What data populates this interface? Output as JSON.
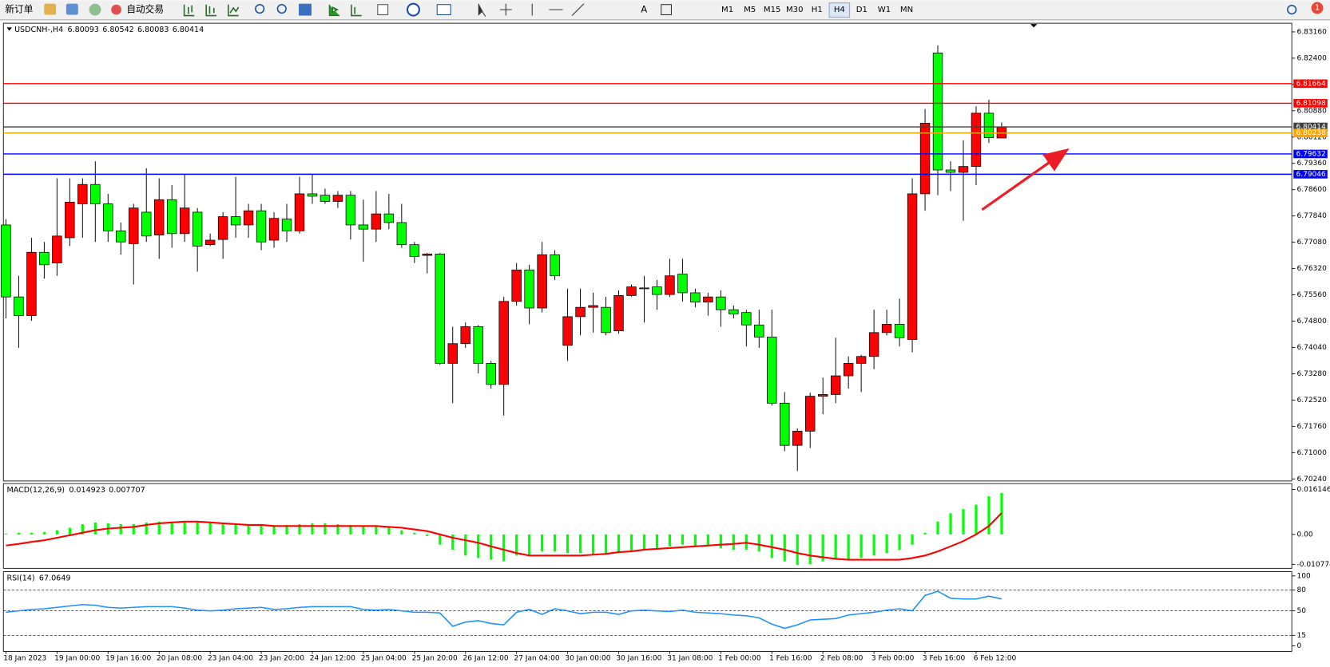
{
  "toolbar": {
    "new_order": "新订单",
    "auto_trading": "自动交易",
    "timeframes": [
      "M1",
      "M5",
      "M15",
      "M30",
      "H1",
      "H4",
      "D1",
      "W1",
      "MN"
    ],
    "active_timeframe": "H4",
    "notifications": 1
  },
  "chart_data": [
    {
      "type": "candlestick",
      "title": "USDCNH-,H4",
      "up_color": "#ff0000",
      "down_color": "#00ff00",
      "categories": [
        "18 Jan 2023",
        null,
        null,
        null,
        "19 Jan 00:00",
        null,
        null,
        null,
        "19 Jan 16:00",
        null,
        null,
        null,
        "20 Jan 08:00",
        null,
        null,
        null,
        "23 Jan 04:00",
        null,
        null,
        null,
        "23 Jan 20:00",
        null,
        null,
        null,
        "24 Jan 12:00",
        null,
        null,
        null,
        "25 Jan 04:00",
        null,
        null,
        null,
        "25 Jan 20:00",
        null,
        null,
        null,
        "26 Jan 12:00",
        null,
        null,
        null,
        "27 Jan 04:00",
        null,
        null,
        null,
        "30 Jan 00:00",
        null,
        null,
        null,
        "30 Jan 16:00",
        null,
        null,
        null,
        "31 Jan 08:00",
        null,
        null,
        null,
        "1 Feb 00:00",
        null,
        null,
        null,
        "1 Feb 16:00",
        null,
        null,
        null,
        "2 Feb 08:00",
        null,
        null,
        null,
        "3 Feb 00:00",
        null,
        null,
        null,
        "3 Feb 16:00",
        null,
        null,
        null,
        "6 Feb 12:00",
        null,
        null
      ],
      "open": [
        6.7758,
        6.755,
        6.7496,
        6.7679,
        6.7648,
        6.7721,
        6.7819,
        6.7875,
        6.7819,
        6.7741,
        6.7704,
        6.7795,
        6.7729,
        6.7831,
        6.7733,
        6.7795,
        6.7701,
        6.7716,
        6.7782,
        6.7758,
        6.7799,
        6.7714,
        6.7775,
        6.7741,
        6.7848,
        6.7844,
        6.7826,
        6.7844,
        6.7758,
        6.7746,
        6.779,
        6.7765,
        6.7701,
        6.767,
        6.7674,
        6.7358,
        6.7415,
        6.7464,
        6.7358,
        6.7297,
        6.7537,
        6.7628,
        6.7518,
        6.7672,
        6.741,
        6.7493,
        6.752,
        6.752,
        6.7452,
        6.7554,
        6.7574,
        6.7579,
        6.7557,
        6.7616,
        6.7562,
        6.7535,
        6.755,
        6.7513,
        6.7505,
        6.7469,
        6.7434,
        6.7243,
        6.7121,
        6.7162,
        6.7263,
        6.7268,
        6.7322,
        6.7358,
        6.7378,
        6.7447,
        6.7471,
        6.7427,
        6.7848,
        6.8255,
        6.7917,
        6.791,
        6.7927,
        6.8081,
        6.80093
      ],
      "high": [
        6.7775,
        6.7611,
        6.7721,
        6.7709,
        6.7893,
        6.7893,
        6.7893,
        6.7942,
        6.7848,
        6.7765,
        6.7819,
        6.7922,
        6.7893,
        6.7873,
        6.7905,
        6.7807,
        6.7733,
        6.7795,
        6.7897,
        6.7819,
        6.7819,
        6.7795,
        6.7819,
        6.7897,
        6.7905,
        6.7863,
        6.7856,
        6.7856,
        6.7831,
        6.7856,
        6.7848,
        6.7819,
        6.7709,
        6.7677,
        6.7677,
        6.7464,
        6.7476,
        6.7469,
        6.7365,
        6.755,
        6.7648,
        6.7643,
        6.7709,
        6.7685,
        6.7574,
        6.7574,
        6.7562,
        6.755,
        6.7569,
        6.7586,
        6.7611,
        6.7599,
        6.766,
        6.766,
        6.7574,
        6.7562,
        6.7569,
        6.7525,
        6.7513,
        6.7513,
        6.7513,
        6.7275,
        6.717,
        6.7273,
        6.7317,
        6.7432,
        6.7378,
        6.7383,
        6.7513,
        6.7513,
        6.7545,
        6.7893,
        6.8093,
        6.8277,
        6.7942,
        6.8003,
        6.8101,
        6.812,
        6.80542
      ],
      "low": [
        6.7488,
        6.7403,
        6.7481,
        6.7603,
        6.7611,
        6.7697,
        6.7721,
        6.7709,
        6.7709,
        6.7672,
        6.7586,
        6.7709,
        6.766,
        6.7692,
        6.7709,
        6.7623,
        6.7697,
        6.766,
        6.7721,
        6.7721,
        6.7685,
        6.7692,
        6.7709,
        6.7733,
        6.7819,
        6.7819,
        6.7807,
        6.7716,
        6.7652,
        6.7709,
        6.7746,
        6.7692,
        6.7648,
        6.7618,
        6.7354,
        6.7243,
        6.7403,
        6.7329,
        6.7285,
        6.7207,
        6.7525,
        6.7471,
        6.7505,
        6.7599,
        6.7365,
        6.7439,
        6.7447,
        6.7439,
        6.7444,
        6.755,
        6.7476,
        6.7513,
        6.755,
        6.7537,
        6.752,
        6.7496,
        6.7464,
        6.7488,
        6.7407,
        6.7403,
        6.7236,
        6.7104,
        6.7047,
        6.7113,
        6.7211,
        6.7243,
        6.7285,
        6.7275,
        6.7341,
        6.7439,
        6.7407,
        6.739,
        6.7799,
        6.7844,
        6.7856,
        6.777,
        6.7873,
        6.7995,
        6.80083
      ],
      "close": [
        6.755,
        6.7496,
        6.7679,
        6.7643,
        6.7726,
        6.7824,
        6.7875,
        6.7819,
        6.7741,
        6.7709,
        6.7807,
        6.7726,
        6.7831,
        6.7733,
        6.7807,
        6.7697,
        6.7714,
        6.7782,
        6.7758,
        6.7799,
        6.7709,
        6.7777,
        6.7741,
        6.7848,
        6.7841,
        6.7826,
        6.7844,
        6.7758,
        6.7746,
        6.779,
        6.7765,
        6.7701,
        6.7667,
        6.7674,
        6.7358,
        6.7415,
        6.7464,
        6.7358,
        6.7297,
        6.7537,
        6.7628,
        6.7518,
        6.7672,
        6.7611,
        6.7493,
        6.752,
        6.7525,
        6.7447,
        6.7554,
        6.7579,
        6.7576,
        6.7557,
        6.7611,
        6.7562,
        6.7535,
        6.755,
        6.7513,
        6.7501,
        6.7469,
        6.7434,
        6.7243,
        6.7121,
        6.7162,
        6.7263,
        6.7268,
        6.7322,
        6.7358,
        6.7378,
        6.7447,
        6.7471,
        6.7432,
        6.7848,
        6.8052,
        6.7917,
        6.791,
        6.7927,
        6.8081,
        6.801,
        6.80414
      ],
      "ylim": [
        6.7018,
        6.8341
      ],
      "yticks": [
        {
          "value": 6.8316,
          "label": "6.83160"
        },
        {
          "value": 6.824,
          "label": "6.82400"
        },
        {
          "value": 6.8164,
          "label": "6.81640"
        },
        {
          "value": 6.8088,
          "label": "6.80880"
        },
        {
          "value": 6.8012,
          "label": "6.80120"
        },
        {
          "value": 6.7936,
          "label": "6.79360"
        },
        {
          "value": 6.786,
          "label": "6.78600"
        },
        {
          "value": 6.7784,
          "label": "6.77840"
        },
        {
          "value": 6.7708,
          "label": "6.77080"
        },
        {
          "value": 6.7632,
          "label": "6.76320"
        },
        {
          "value": 6.7556,
          "label": "6.75560"
        },
        {
          "value": 6.748,
          "label": "6.74800"
        },
        {
          "value": 6.7404,
          "label": "6.74040"
        },
        {
          "value": 6.7328,
          "label": "6.73280"
        },
        {
          "value": 6.7252,
          "label": "6.72520"
        },
        {
          "value": 6.7176,
          "label": "6.71760"
        },
        {
          "value": 6.71,
          "label": "6.71000"
        },
        {
          "value": 6.7024,
          "label": "6.70240"
        }
      ],
      "hlines": [
        {
          "value": 6.81664,
          "color": "#ff0000"
        },
        {
          "value": 6.81098,
          "color": "#ff0000"
        },
        {
          "value": 6.80414,
          "color": "#404040"
        },
        {
          "value": 6.80238,
          "color": "#ffa500"
        },
        {
          "value": 6.79632,
          "color": "#0000ff"
        },
        {
          "value": 6.79046,
          "color": "#0000ff"
        }
      ]
    },
    {
      "type": "macd",
      "title": "MACD(12,26,9)",
      "series": [
        {
          "style": "histogram",
          "color": "#00ff00",
          "values": [
            0.0003,
            0.0006,
            0.0006,
            0.0009,
            0.0015,
            0.0024,
            0.0037,
            0.0043,
            0.004,
            0.0037,
            0.0037,
            0.0043,
            0.0046,
            0.0046,
            0.0043,
            0.0043,
            0.004,
            0.004,
            0.0037,
            0.0037,
            0.0037,
            0.0034,
            0.0034,
            0.0037,
            0.004,
            0.004,
            0.0037,
            0.0034,
            0.003,
            0.0027,
            0.0024,
            0.0015,
            0.0006,
            -0.0006,
            -0.0037,
            -0.0055,
            -0.0076,
            -0.0085,
            -0.0091,
            -0.0097,
            -0.0076,
            -0.0076,
            -0.0061,
            -0.0061,
            -0.0067,
            -0.0067,
            -0.0073,
            -0.0073,
            -0.0067,
            -0.0061,
            -0.0055,
            -0.0049,
            -0.0043,
            -0.0037,
            -0.0043,
            -0.0043,
            -0.0049,
            -0.0055,
            -0.0055,
            -0.0061,
            -0.0085,
            -0.0097,
            -0.011,
            -0.0107,
            -0.0097,
            -0.0091,
            -0.0091,
            -0.0085,
            -0.0076,
            -0.0067,
            -0.0055,
            -0.0037,
            0.0006,
            0.0046,
            0.0076,
            0.0091,
            0.0107,
            0.0137,
            0.014923
          ]
        },
        {
          "style": "line",
          "color": "#ff0000",
          "values": [
            -0.004,
            -0.0034,
            -0.0027,
            -0.0021,
            -0.0012,
            -0.0003,
            0.0006,
            0.0015,
            0.0021,
            0.0024,
            0.0027,
            0.0034,
            0.004,
            0.0043,
            0.0046,
            0.0046,
            0.0043,
            0.004,
            0.0037,
            0.0034,
            0.0034,
            0.003,
            0.003,
            0.003,
            0.003,
            0.003,
            0.003,
            0.003,
            0.003,
            0.003,
            0.0027,
            0.0024,
            0.0018,
            0.0012,
            0,
            -0.0012,
            -0.0021,
            -0.003,
            -0.0043,
            -0.0055,
            -0.0067,
            -0.0076,
            -0.0076,
            -0.0076,
            -0.0076,
            -0.0076,
            -0.0073,
            -0.007,
            -0.0064,
            -0.0061,
            -0.0055,
            -0.0052,
            -0.0049,
            -0.0046,
            -0.0043,
            -0.004,
            -0.0037,
            -0.0034,
            -0.003,
            -0.0037,
            -0.0046,
            -0.0055,
            -0.0067,
            -0.0076,
            -0.0082,
            -0.0088,
            -0.0091,
            -0.0091,
            -0.0091,
            -0.0091,
            -0.0091,
            -0.0085,
            -0.0076,
            -0.0061,
            -0.0043,
            -0.0024,
            0,
            0.003,
            0.007707
          ]
        }
      ],
      "ylim": [
        -0.0122,
        0.0183
      ],
      "yticks": [
        0.016146,
        {
          "value": 0,
          "label": "0.00"
        },
        -0.010774
      ]
    },
    {
      "type": "line",
      "title": "RSI(14)",
      "color": "#1e90ff",
      "values": [
        48,
        50,
        52,
        53,
        55,
        57,
        59,
        58,
        55,
        54,
        55,
        56,
        56,
        56,
        54,
        51,
        50,
        51,
        53,
        54,
        55,
        52,
        53,
        55,
        56,
        56,
        56,
        56,
        52,
        51,
        52,
        50,
        48,
        48,
        47,
        28,
        34,
        36,
        32,
        30,
        48,
        52,
        45,
        53,
        50,
        46,
        48,
        48,
        45,
        50,
        51,
        50,
        49,
        51,
        48,
        47,
        46,
        44,
        43,
        40,
        31,
        25,
        30,
        37,
        38,
        39,
        44,
        46,
        48,
        51,
        53,
        50,
        72,
        78,
        68,
        67,
        67,
        71,
        67.0649
      ],
      "ylim": [
        -8,
        106
      ],
      "yticks": [
        100,
        80,
        50,
        15,
        0
      ],
      "levels": [
        80,
        50,
        15
      ]
    }
  ]
}
